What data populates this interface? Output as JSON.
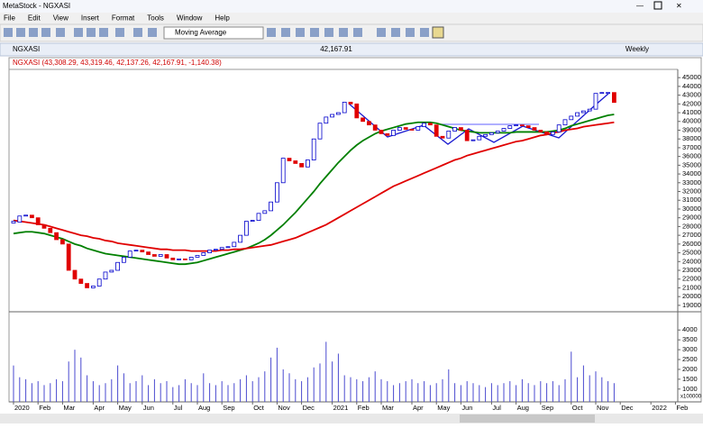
{
  "app": {
    "title": "MetaStock - NGXASI",
    "menu": [
      "File",
      "Edit",
      "View",
      "Insert",
      "Format",
      "Tools",
      "Window",
      "Help"
    ],
    "indicator": "Moving Average"
  },
  "chart_data": {
    "type": "candlestick",
    "title": "NGXASI",
    "last_value": "42,167.91",
    "period": "Weekly",
    "legend": "NGXASI (43,308.29, 43,319.46, 42,137.26, 42,167.91, -1,140.38)",
    "up_color": "#0000cc",
    "down_color": "#e00000",
    "categories": [
      "2020",
      null,
      null,
      null,
      "Feb",
      null,
      null,
      null,
      "Mar",
      null,
      null,
      null,
      null,
      "Apr",
      null,
      null,
      null,
      "May",
      null,
      null,
      null,
      "Jun",
      null,
      null,
      null,
      null,
      "Jul",
      null,
      null,
      null,
      "Aug",
      null,
      null,
      null,
      "Sep",
      null,
      null,
      null,
      null,
      "Oct",
      null,
      null,
      null,
      "Nov",
      null,
      null,
      null,
      "Dec",
      null,
      null,
      null,
      null,
      "2021",
      null,
      null,
      null,
      "Feb",
      null,
      null,
      null,
      "Mar",
      null,
      null,
      null,
      null,
      "Apr",
      null,
      null,
      null,
      "May",
      null,
      null,
      null,
      "Jun",
      null,
      null,
      null,
      null,
      "Jul",
      null,
      null,
      null,
      "Aug",
      null,
      null,
      null,
      "Sep",
      null,
      null,
      null,
      null,
      "Oct",
      null,
      null,
      null,
      "Nov",
      null,
      null,
      null,
      "Dec",
      null,
      null,
      null,
      null,
      "2022",
      null,
      null,
      null,
      "Feb"
    ],
    "close": [
      28500,
      29200,
      29300,
      29000,
      28200,
      27800,
      27300,
      26500,
      26000,
      23000,
      22000,
      21500,
      21000,
      21200,
      22000,
      22800,
      23000,
      23900,
      24500,
      25200,
      25300,
      25100,
      24800,
      24600,
      24800,
      24400,
      24200,
      24300,
      24200,
      24500,
      24700,
      25000,
      25300,
      25400,
      25600,
      25700,
      26200,
      27000,
      28600,
      28700,
      29500,
      29800,
      30800,
      33000,
      35800,
      35500,
      35200,
      34800,
      35600,
      38000,
      39800,
      40500,
      40800,
      41000,
      42200,
      42000,
      40400,
      40000,
      39600,
      39000,
      38600,
      38400,
      39000,
      39300,
      39100,
      39000,
      39400,
      39800,
      39600,
      38300,
      38100,
      38900,
      39300,
      39000,
      37800,
      37900,
      38300,
      38500,
      38700,
      38900,
      39200,
      39500,
      39600,
      39500,
      39300,
      39000,
      38800,
      38500,
      38800,
      39600,
      40200,
      40600,
      41000,
      41200,
      41400,
      43200,
      43300,
      43300,
      42167.91,
      null,
      null,
      null,
      null,
      null,
      null,
      null,
      null,
      null,
      null
    ],
    "moving_averages": [
      {
        "color": "#008000",
        "values": [
          27200,
          27300,
          27400,
          27400,
          27300,
          27200,
          27000,
          26800,
          26600,
          26300,
          26000,
          25800,
          25500,
          25300,
          25100,
          24900,
          24800,
          24700,
          24600,
          24500,
          24400,
          24300,
          24200,
          24100,
          24000,
          23900,
          23800,
          23700,
          23700,
          23800,
          23900,
          24100,
          24300,
          24500,
          24700,
          24900,
          25100,
          25300,
          25500,
          25800,
          26100,
          26500,
          27000,
          27600,
          28200,
          28900,
          29600,
          30400,
          31200,
          32000,
          32900,
          33700,
          34500,
          35300,
          36000,
          36700,
          37300,
          37800,
          38200,
          38600,
          38900,
          39100,
          39300,
          39500,
          39700,
          39800,
          39900,
          39900,
          39900,
          39800,
          39600,
          39400,
          39200,
          39000,
          38900,
          38800,
          38700,
          38700,
          38700,
          38700,
          38700,
          38700,
          38800,
          38800,
          38800,
          38800,
          38800,
          38800,
          38900,
          39000,
          39200,
          39500,
          39700,
          39900,
          40100,
          40300,
          40500,
          40700,
          40800,
          null,
          null,
          null,
          null,
          null,
          null,
          null,
          null,
          null,
          null
        ]
      },
      {
        "color": "#e00000",
        "values": [
          28700,
          28600,
          28500,
          28400,
          28300,
          28200,
          28000,
          27800,
          27600,
          27400,
          27200,
          27000,
          26900,
          26700,
          26600,
          26400,
          26300,
          26100,
          26000,
          25900,
          25800,
          25700,
          25600,
          25500,
          25400,
          25400,
          25300,
          25300,
          25300,
          25200,
          25200,
          25200,
          25200,
          25200,
          25300,
          25300,
          25400,
          25400,
          25500,
          25600,
          25700,
          25800,
          25900,
          26100,
          26300,
          26500,
          26700,
          27000,
          27300,
          27600,
          27900,
          28200,
          28600,
          29000,
          29400,
          29800,
          30200,
          30600,
          31000,
          31400,
          31800,
          32200,
          32600,
          32900,
          33200,
          33500,
          33800,
          34100,
          34400,
          34700,
          35000,
          35300,
          35600,
          35800,
          36100,
          36300,
          36500,
          36700,
          36900,
          37100,
          37300,
          37500,
          37700,
          37800,
          38000,
          38200,
          38400,
          38500,
          38700,
          38800,
          39000,
          39100,
          39200,
          39400,
          39500,
          39600,
          39700,
          39800,
          39900,
          null,
          null,
          null,
          null,
          null,
          null,
          null,
          null,
          null,
          null
        ]
      }
    ],
    "ylim": [
      18370,
      45840
    ],
    "yticks": [
      19000,
      20000,
      21000,
      22000,
      23000,
      24000,
      25000,
      26000,
      27000,
      28000,
      29000,
      30000,
      31000,
      32000,
      33000,
      34000,
      35000,
      36000,
      37000,
      38000,
      39000,
      40000,
      41000,
      42000,
      43000,
      44000,
      45000
    ],
    "volume": {
      "color": "#4a4ad0",
      "unit": "x100000",
      "ylim": [
        350,
        4880
      ],
      "yticks": [
        1000,
        1500,
        2000,
        2500,
        3000,
        3500,
        4000
      ],
      "values": [
        2200,
        1600,
        1500,
        1300,
        1400,
        1200,
        1300,
        1500,
        1400,
        2400,
        3000,
        2600,
        1700,
        1400,
        1200,
        1300,
        1500,
        2200,
        1800,
        1300,
        1400,
        1700,
        1200,
        1500,
        1300,
        1400,
        1100,
        1200,
        1500,
        1300,
        1200,
        1800,
        1300,
        1200,
        1400,
        1200,
        1300,
        1500,
        1700,
        1400,
        1600,
        1900,
        2600,
        3100,
        2000,
        1800,
        1500,
        1400,
        1600,
        2100,
        2300,
        3400,
        2400,
        2800,
        1700,
        1600,
        1500,
        1400,
        1600,
        1900,
        1500,
        1400,
        1200,
        1300,
        1400,
        1500,
        1300,
        1400,
        1200,
        1300,
        1500,
        2000,
        1300,
        1200,
        1400,
        1300,
        1200,
        1100,
        1300,
        1200,
        1300,
        1400,
        1200,
        1500,
        1300,
        1200,
        1400,
        1300,
        1400,
        1200,
        1500,
        2900,
        1600,
        2200,
        1700,
        1900,
        1600,
        1400,
        1300,
        null,
        null,
        null,
        null,
        null,
        null,
        null,
        null,
        null,
        null
      ]
    }
  }
}
